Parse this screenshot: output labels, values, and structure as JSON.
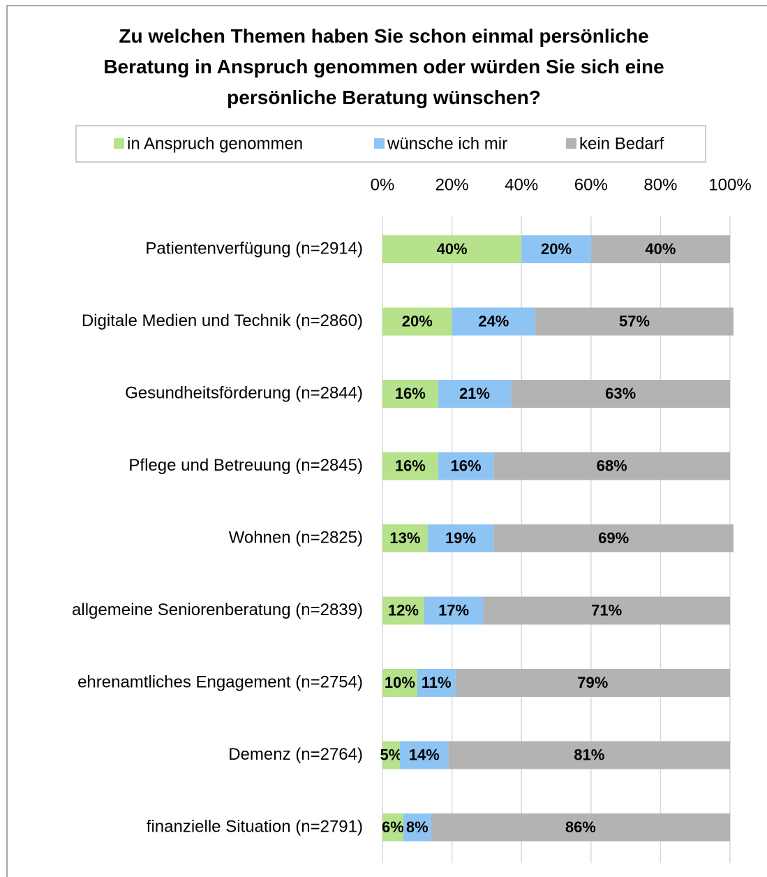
{
  "chart_data": {
    "type": "stacked_bar_horizontal",
    "title": "Zu welchen Themen haben Sie schon einmal persönliche Beratung in Anspruch genommen oder würden Sie sich eine persönliche Beratung wünschen?",
    "categories": [
      "Patientenverfügung (n=2914)",
      "Digitale Medien und Technik (n=2860)",
      "Gesundheitsförderung (n=2844)",
      "Pflege und Betreuung (n=2845)",
      "Wohnen (n=2825)",
      "allgemeine Seniorenberatung (n=2839)",
      "ehrenamtliches Engagement (n=2754)",
      "Demenz (n=2764)",
      "finanzielle Situation (n=2791)"
    ],
    "series": [
      {
        "name": "in Anspruch genommen",
        "color": "#b5e28a",
        "values": [
          40,
          20,
          16,
          16,
          13,
          12,
          10,
          5,
          6
        ],
        "value_labels": [
          "40%",
          "20%",
          "16%",
          "16%",
          "13%",
          "12%",
          "10%",
          "5%",
          "6%"
        ]
      },
      {
        "name": "wünsche ich mir",
        "color": "#8ec4f4",
        "values": [
          20,
          24,
          21,
          16,
          19,
          17,
          11,
          14,
          8
        ],
        "value_labels": [
          "20%",
          "24%",
          "21%",
          "16%",
          "19%",
          "17%",
          "11%",
          "14%",
          "8%"
        ]
      },
      {
        "name": "kein Bedarf",
        "color": "#b3b3b3",
        "values": [
          40,
          57,
          63,
          68,
          69,
          71,
          79,
          81,
          86
        ],
        "value_labels": [
          "40%",
          "57%",
          "63%",
          "68%",
          "69%",
          "71%",
          "79%",
          "81%",
          "86%"
        ]
      }
    ],
    "xlim": [
      0,
      100
    ],
    "xticks": [
      {
        "value": 0,
        "label": "0%"
      },
      {
        "value": 20,
        "label": "20%"
      },
      {
        "value": 40,
        "label": "40%"
      },
      {
        "value": 60,
        "label": "60%"
      },
      {
        "value": 80,
        "label": "80%"
      },
      {
        "value": 100,
        "label": "100%"
      }
    ],
    "grid": true,
    "legend": "top"
  }
}
